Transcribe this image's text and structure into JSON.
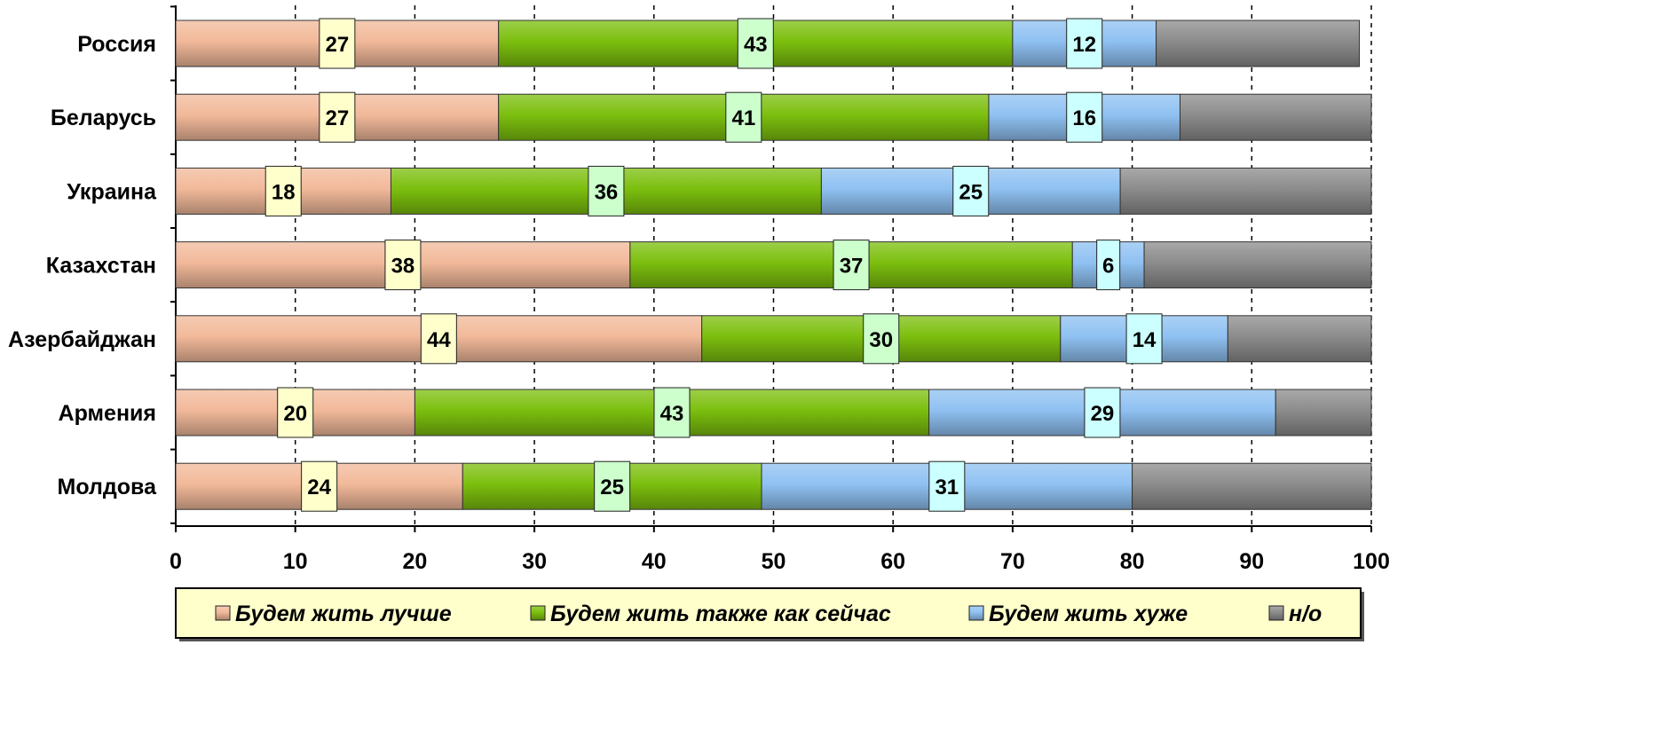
{
  "chart_data": {
    "type": "bar",
    "orientation": "horizontal",
    "stacked": true,
    "categories": [
      "Россия",
      "Беларусь",
      "Украина",
      "Казахстан",
      "Азербайджан",
      "Армения",
      "Молдова"
    ],
    "series": [
      {
        "name": "Будем жить лучше",
        "values": [
          27,
          27,
          18,
          38,
          44,
          20,
          24
        ],
        "color": "#f2b99a",
        "label_bg": "#ffffcc"
      },
      {
        "name": "Будем жить также как сейчас",
        "values": [
          43,
          41,
          36,
          37,
          30,
          43,
          25
        ],
        "color": "#7cbf0e",
        "label_bg": "#ccffcc"
      },
      {
        "name": "Будем жить хуже",
        "values": [
          12,
          16,
          25,
          6,
          14,
          29,
          31
        ],
        "color": "#8fc1f2",
        "label_bg": "#ccffff"
      },
      {
        "name": "н/о",
        "values": [
          17,
          17,
          22,
          19,
          12,
          8,
          20
        ],
        "color": "#8c8c8c",
        "show_labels": false
      }
    ],
    "x_ticks": [
      "0",
      "10",
      "20",
      "30",
      "40",
      "50",
      "60",
      "70",
      "80",
      "90",
      "100"
    ],
    "xlim": [
      0,
      100
    ],
    "grid": "vertical dashed",
    "legend_position": "bottom",
    "legend_bg": "#ffffcc"
  }
}
